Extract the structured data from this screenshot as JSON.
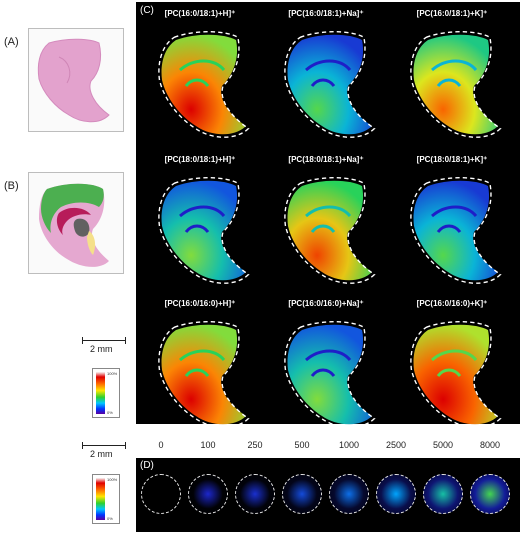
{
  "figure": {
    "label_a": "(A)",
    "label_b": "(B)",
    "label_c": "(C)",
    "label_d": "(D)",
    "scale_c": "2 mm",
    "scale_d": "2 mm",
    "colorbar_c": {
      "max": "100%",
      "min": "0%"
    },
    "colorbar_d": {
      "max": "100%",
      "min": "0%"
    }
  },
  "ions": [
    {
      "label": "[PC(16:0/18:1)+H]⁺",
      "intensity": 0.8
    },
    {
      "label": "[PC(16:0/18:1)+Na]⁺",
      "intensity": 0.3
    },
    {
      "label": "[PC(16:0/18:1)+K]⁺",
      "intensity": 0.65
    },
    {
      "label": "[PC(18:0/18:1)+H]⁺",
      "intensity": 0.35
    },
    {
      "label": "[PC(18:0/18:1)+Na]⁺",
      "intensity": 0.7
    },
    {
      "label": "[PC(18:0/18:1)+K]⁺",
      "intensity": 0.3
    },
    {
      "label": "[PC(16:0/16:0)+H]⁺",
      "intensity": 0.8
    },
    {
      "label": "[PC(16:0/16:0)+Na]⁺",
      "intensity": 0.35
    },
    {
      "label": "[PC(16:0/16:0)+K]⁺",
      "intensity": 0.85
    }
  ],
  "concentrations": [
    {
      "label": "0",
      "intensity": 0.0
    },
    {
      "label": "100",
      "intensity": 0.02
    },
    {
      "label": "250",
      "intensity": 0.04
    },
    {
      "label": "500",
      "intensity": 0.1
    },
    {
      "label": "1000",
      "intensity": 0.18
    },
    {
      "label": "2500",
      "intensity": 0.3
    },
    {
      "label": "5000",
      "intensity": 0.45
    },
    {
      "label": "8000",
      "intensity": 0.6
    }
  ],
  "colors": {
    "tissue_he": "#e8a9d3",
    "region_cortex": "#4caf50",
    "region_hippocampus": "#b71c5a",
    "region_thalamus": "#616161",
    "region_striatum": "#f5e08a",
    "outline": "#ffffff",
    "panel_bg": "#000000"
  }
}
